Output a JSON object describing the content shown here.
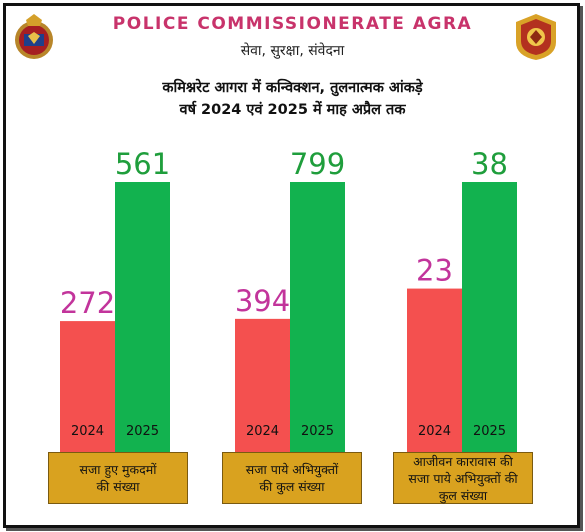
{
  "header": {
    "org_title": "POLICE COMMISSIONERATE AGRA",
    "motto": "सेवा, सुरक्षा, संवेदना",
    "logo_left": "up-police-emblem-icon",
    "logo_right": "agra-police-badge-icon"
  },
  "chart_title": {
    "line1": "कमिश्नरेट आगरा में कन्विक्शन, तुलनात्मक आंकड़े",
    "line2": "वर्ष 2024 एवं 2025 में माह अप्रैल तक"
  },
  "chart_data": {
    "type": "bar",
    "title": "कमिश्नरेट आगरा में कन्विक्शन, तुलनात्मक आंकड़े वर्ष 2024 एवं 2025 में माह अप्रैल तक",
    "categories": [
      "सजा हुए मुकदमों की संख्या",
      "सजा पाये अभियुक्तों की कुल संख्या",
      "आजीवन कारावास की सजा पाये अभियुक्तों की कुल संख्या"
    ],
    "category_lines": [
      [
        "सजा हुए मुकदमों",
        "की संख्या"
      ],
      [
        "सजा पाये अभियुक्तों",
        "की कुल संख्या"
      ],
      [
        "आजीवन कारावास की",
        "सजा पाये अभियुक्तों की",
        "कुल संख्या"
      ]
    ],
    "series": [
      {
        "name": "2024",
        "values": [
          272,
          394,
          23
        ],
        "color": "#f4504f",
        "label_color": "#c2349b"
      },
      {
        "name": "2025",
        "values": [
          561,
          799,
          38
        ],
        "color": "#12b24f",
        "label_color": "#1f9e3c"
      }
    ],
    "note": "each category group is drawn on its own independent scale (bars not comparable across groups)"
  },
  "colors": {
    "title_pink": "#c8336b",
    "category_box": "#d9a21f"
  }
}
